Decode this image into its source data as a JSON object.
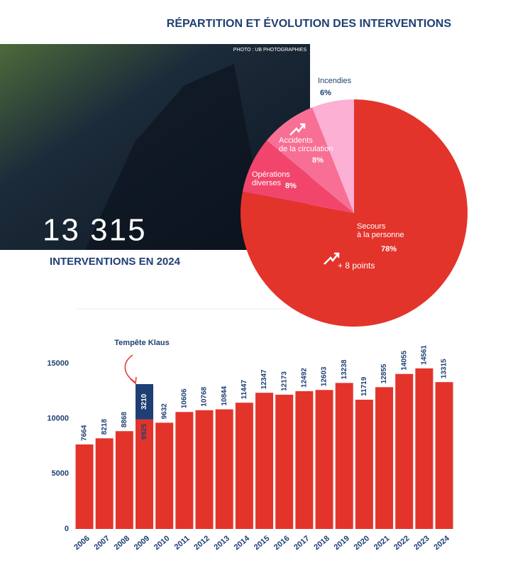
{
  "title": "RÉPARTITION ET ÉVOLUTION DES INTERVENTIONS",
  "photo_credit": "PHOTO : UB PHOTOGRAPHIES",
  "big_number": "13 315",
  "big_label": "INTERVENTIONS EN 2024",
  "chart_data": [
    {
      "type": "pie",
      "categories": [
        "Secours\nà la personne",
        "Opérations\ndiverses",
        "Accidents\nde la circulation",
        "Incendies"
      ],
      "values": [
        78,
        8,
        8,
        6
      ],
      "value_labels": [
        "78%",
        "8%",
        "8%",
        "6%"
      ],
      "colors": [
        "#e3342b",
        "#f2456b",
        "#f86f95",
        "#fbb0d4"
      ],
      "annotation": "+ 8 points"
    },
    {
      "type": "bar",
      "categories": [
        "2006",
        "2007",
        "2008",
        "2009",
        "2010",
        "2011",
        "2012",
        "2013",
        "2014",
        "2015",
        "2016",
        "2017",
        "2018",
        "2019",
        "2020",
        "2021",
        "2022",
        "2023",
        "2024"
      ],
      "series": [
        {
          "color": "#e3342b",
          "values": [
            7664,
            8218,
            8868,
            9925,
            9632,
            10606,
            10768,
            10844,
            11447,
            12347,
            12173,
            12492,
            12603,
            13238,
            11719,
            12855,
            14055,
            14561,
            13315
          ]
        },
        {
          "color": "#1e3f73",
          "values": [
            null,
            null,
            null,
            3210,
            null,
            null,
            null,
            null,
            null,
            null,
            null,
            null,
            null,
            null,
            null,
            null,
            null,
            null,
            null
          ]
        }
      ],
      "ylim": [
        0,
        16000
      ],
      "yticks": [
        0,
        5000,
        10000,
        15000
      ],
      "grid": false,
      "annotation": "Tempête Klaus"
    }
  ]
}
